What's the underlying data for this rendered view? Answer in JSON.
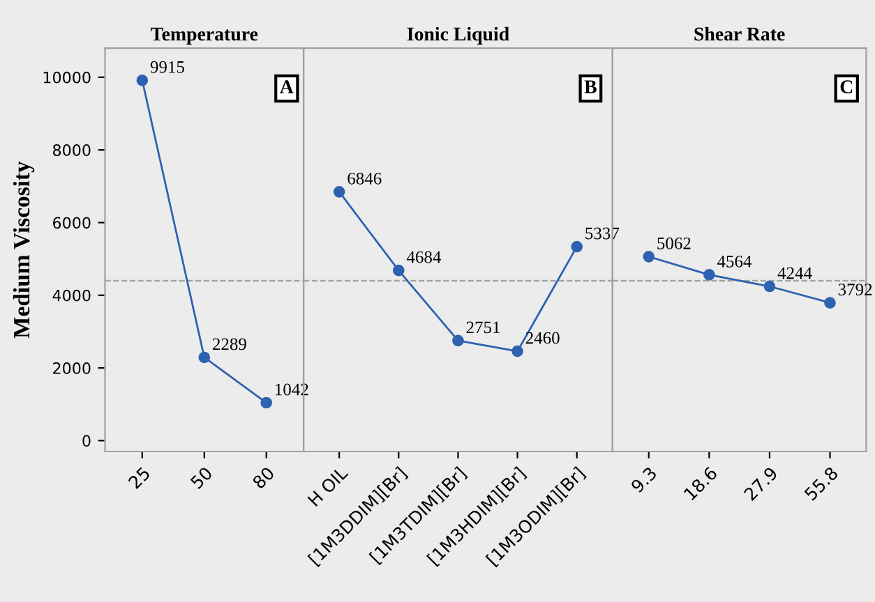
{
  "chart_data": [
    {
      "type": "line",
      "title": "Temperature",
      "ylabel": "Medium Viscosity",
      "categories": [
        "25",
        "50",
        "80"
      ],
      "series": [
        {
          "color": "#2e62b0",
          "values": [
            9915,
            2289,
            1042
          ]
        }
      ],
      "ylim": [
        -300,
        10800
      ],
      "yticks": [
        0,
        2000,
        4000,
        6000,
        8000,
        10000
      ],
      "data_labels": true,
      "marker": "circle",
      "ref_lines": [
        {
          "axis": "y",
          "value": 4400,
          "line_style": "dashed",
          "color": "#a0a0a0"
        }
      ],
      "annotations": [
        "A"
      ]
    },
    {
      "type": "line",
      "title": "Ionic Liquid",
      "categories": [
        "H OIL",
        "[1M3DDIM][Br]",
        "[1M3TDIM][Br]",
        "[1M3HDIM][Br]",
        "[1M3ODIM][Br]"
      ],
      "series": [
        {
          "color": "#2e62b0",
          "values": [
            6846,
            4684,
            2751,
            2460,
            5337
          ]
        }
      ],
      "ylim": [
        -300,
        10800
      ],
      "yticks": [
        0,
        2000,
        4000,
        6000,
        8000,
        10000
      ],
      "tick_labels": "x",
      "data_labels": true,
      "marker": "circle",
      "ref_lines": [
        {
          "axis": "y",
          "value": 4400,
          "line_style": "dashed",
          "color": "#a0a0a0"
        }
      ],
      "annotations": [
        "B"
      ]
    },
    {
      "type": "line",
      "title": "Shear Rate",
      "categories": [
        "9.3",
        "18.6",
        "27.9",
        "55.8"
      ],
      "series": [
        {
          "color": "#2e62b0",
          "values": [
            5062,
            4564,
            4244,
            3792
          ]
        }
      ],
      "ylim": [
        -300,
        10800
      ],
      "yticks": [
        0,
        2000,
        4000,
        6000,
        8000,
        10000
      ],
      "tick_labels": "x",
      "data_labels": true,
      "marker": "circle",
      "ref_lines": [
        {
          "axis": "y",
          "value": 4400,
          "line_style": "dashed",
          "color": "#a0a0a0"
        }
      ],
      "annotations": [
        "C"
      ]
    }
  ]
}
